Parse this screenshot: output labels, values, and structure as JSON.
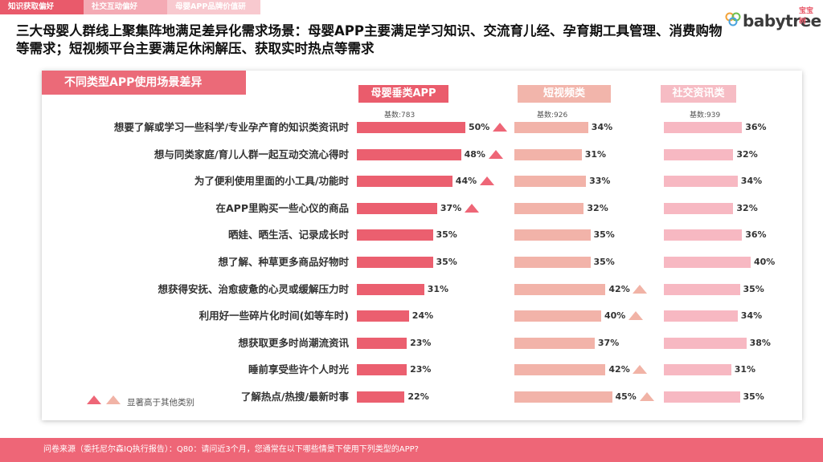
{
  "tabs": [
    {
      "label": "知识获取偏好"
    },
    {
      "label": "社交互动偏好"
    },
    {
      "label": "母婴APP品牌价值研究"
    }
  ],
  "logo": {
    "text": "babytree",
    "cn": "宝宝树"
  },
  "headline": "三大母婴人群线上聚集阵地满足差异化需求场景：母婴APP主要满足学习知识、交流育儿经、孕育期工具管理、消费购物等需求；短视频平台主要满足休闲解压、获取实时热点等需求",
  "panel_title": "不同类型APP使用场景差异",
  "legend_label": "显著高于其他类别",
  "footer": "问卷来源（委托尼尔森IQ执行报告）：Q80：请问近3个月，您通常在以下哪些情景下使用下列类型的APP?",
  "colors": {
    "series1_bar": "#eb5f6f",
    "series2_bar": "#f2b3a9",
    "series3_bar": "#f7b8c2",
    "tri_series1": "#ee6677",
    "tri_series2": "#f1b3a6",
    "header1": "#ea5c6c",
    "header2": "#f2b5ab",
    "header3": "#f6bcc4"
  },
  "chart_data": {
    "type": "bar",
    "orientation": "horizontal",
    "categories": [
      "想要了解或学习一些科学/专业孕产育的知识类资讯时",
      "想与同类家庭/育儿人群一起互动交流心得时",
      "为了便利使用里面的小工具/功能时",
      "在APP里购买一些心仪的商品",
      "晒娃、晒生活、记录成长时",
      "想了解、种草更多商品好物时",
      "想获得安抚、治愈疲惫的心灵或缓解压力时",
      "利用好一些碎片化时间(如等车时)",
      "想获取更多时尚潮流资讯",
      "睡前享受些许个人时光",
      "了解热点/热搜/最新时事"
    ],
    "series": [
      {
        "name": "母婴垂类APP",
        "base": "基数:783",
        "values": [
          50,
          48,
          44,
          37,
          35,
          35,
          31,
          24,
          23,
          23,
          22
        ],
        "labels": [
          "50%",
          "48%",
          "44%",
          "37%",
          "35%",
          "35%",
          "31%",
          "24%",
          "23%",
          "23%",
          "22%"
        ],
        "significant": [
          true,
          true,
          true,
          true,
          false,
          false,
          false,
          false,
          false,
          false,
          false
        ]
      },
      {
        "name": "短视频类",
        "base": "基数:926",
        "values": [
          34,
          31,
          33,
          32,
          35,
          35,
          42,
          40,
          37,
          42,
          45
        ],
        "labels": [
          "34%",
          "31%",
          "33%",
          "32%",
          "35%",
          "35%",
          "42%",
          "40%",
          "37%",
          "42%",
          "45%"
        ],
        "significant": [
          false,
          false,
          false,
          false,
          false,
          false,
          true,
          true,
          false,
          true,
          true
        ]
      },
      {
        "name": "社交资讯类",
        "base": "基数:939",
        "values": [
          36,
          32,
          34,
          32,
          36,
          40,
          35,
          34,
          38,
          31,
          35
        ],
        "labels": [
          "36%",
          "32%",
          "34%",
          "32%",
          "36%",
          "40%",
          "35%",
          "34%",
          "38%",
          "31%",
          "35%"
        ],
        "significant": [
          false,
          false,
          false,
          false,
          false,
          false,
          false,
          false,
          false,
          false,
          false
        ]
      }
    ],
    "xlim": [
      0,
      100
    ]
  }
}
